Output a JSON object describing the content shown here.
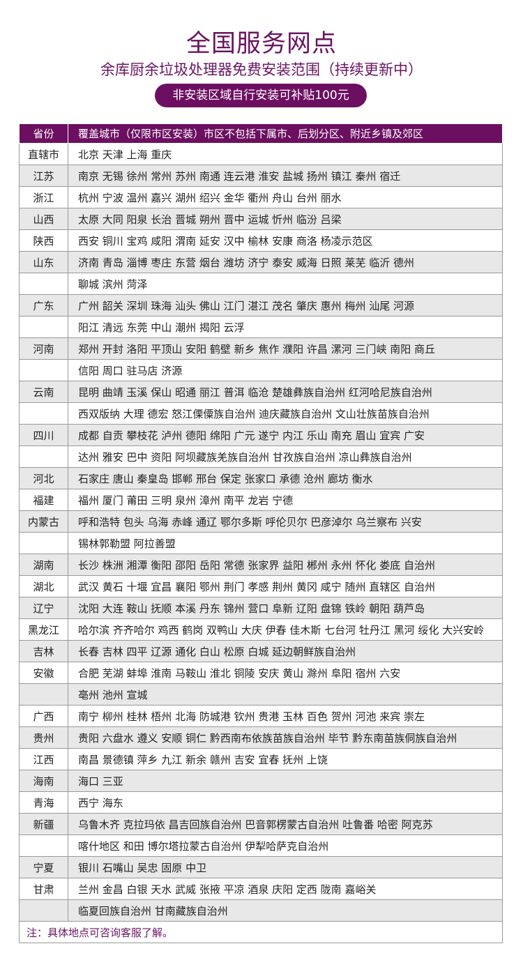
{
  "title": "全国服务网点",
  "subtitle": "余库厨余垃圾处理器免费安装范围（持续更新中）",
  "badge": "非安装区域自行安装可补贴100元",
  "colors": {
    "accent": "#6c0f61"
  },
  "table": {
    "headers": [
      "省份",
      "覆盖城市（仅限市区安装）市区不包括下属市、后划分区、附近乡镇及郊区"
    ],
    "rows": [
      {
        "province": "直辖市",
        "cities": "北京  天津  上海  重庆"
      },
      {
        "province": "江苏",
        "cities": "南京  无锡  徐州  常州  苏州  南通  连云港  淮安  盐城  扬州  镇江  秦州  宿迁"
      },
      {
        "province": "浙江",
        "cities": "杭州  宁波  温州  嘉兴  湖州  绍兴  金华  衢州  舟山  台州  丽水"
      },
      {
        "province": "山西",
        "cities": "太原  大同  阳泉  长治  晋城  朔州  晋中  运城  忻州  临汾  吕梁"
      },
      {
        "province": "陕西",
        "cities": "西安  铜川  宝鸡  咸阳  渭南  延安  汉中  榆林  安康  商洛  杨凌示范区"
      },
      {
        "province": "山东",
        "cities": "济南  青岛  淄博  枣庄  东营  烟台  潍坊  济宁  泰安  威海  日照  莱芜  临沂  德州"
      },
      {
        "province": "",
        "cities": "聊城  滨州  菏泽"
      },
      {
        "province": "广东",
        "cities": "广州  韶关  深圳  珠海  汕头  佛山  江门  湛江  茂名  肇庆  惠州  梅州  汕尾  河源"
      },
      {
        "province": "",
        "cities": "阳江  清远  东莞  中山  潮州  揭阳  云浮"
      },
      {
        "province": "河南",
        "cities": "郑州  开封  洛阳  平顶山  安阳  鹤壁  新乡  焦作  濮阳  许昌  漯河  三门峡  南阳  商丘"
      },
      {
        "province": "",
        "cities": "信阳  周口  驻马店  济源"
      },
      {
        "province": "云南",
        "cities": "昆明  曲靖  玉溪  保山  昭通  丽江  普洱  临沧  楚雄彝族自治州  红河哈尼族自治州"
      },
      {
        "province": "",
        "cities": "西双版纳  大理  德宏  怒江傈僳族自治州  迪庆藏族自治州  文山壮族苗族自治州"
      },
      {
        "province": "四川",
        "cities": "成都  自贡  攀枝花  泸州  德阳  绵阳  广元  遂宁  内江  乐山  南充  眉山  宜宾  广安"
      },
      {
        "province": "",
        "cities": "达州  雅安  巴中  资阳  阿坝藏族羌族自治州  甘孜族自治州  凉山彝族自治州"
      },
      {
        "province": "河北",
        "cities": "石家庄  唐山  秦皇岛  邯郸  邢台  保定  张家口  承德  沧州  廊坊  衡水"
      },
      {
        "province": "福建",
        "cities": "福州  厦门  莆田  三明  泉州  漳州  南平  龙岩  宁德"
      },
      {
        "province": "内蒙古",
        "cities": "呼和浩特  包头  乌海  赤峰  通辽  鄂尔多斯  呼伦贝尔  巴彦淖尔  乌兰察布  兴安"
      },
      {
        "province": "",
        "cities": "锡林郭勒盟  阿拉善盟"
      },
      {
        "province": "湖南",
        "cities": "长沙  株洲  湘潭  衡阳  邵阳  岳阳  常德  张家界  益阳  郴州  永州  怀化  娄底  自治州"
      },
      {
        "province": "湖北",
        "cities": "武汉  黄石  十堰  宜昌  襄阳  鄂州  荆门  孝感  荆州  黄冈  咸宁  随州  直辖区  自治州"
      },
      {
        "province": "辽宁",
        "cities": "沈阳  大连  鞍山  抚顺  本溪  丹东  锦州  营口  阜新  辽阳  盘锦  铁岭  朝阳  葫芦岛"
      },
      {
        "province": "黑龙江",
        "cities": "哈尔滨  齐齐哈尔  鸡西  鹤岗  双鸭山  大庆  伊春  佳木斯  七台河  牡丹江  黑河  绥化  大兴安岭"
      },
      {
        "province": "吉林",
        "cities": "长春  吉林  四平  辽源  通化  白山  松原  白城  延边朝鲜族自治州"
      },
      {
        "province": "安徽",
        "cities": "合肥  芜湖  蚌埠  淮南  马鞍山  淮北  铜陵  安庆   黄山  滁州   阜阳  宿州  六安"
      },
      {
        "province": "",
        "cities": "亳州  池州  宣城"
      },
      {
        "province": "广西",
        "cities": "南宁  柳州  桂林  梧州  北海  防城港  钦州  贵港  玉林  百色  贺州  河池  来宾  崇左"
      },
      {
        "province": "贵州",
        "cities": "贵阳  六盘水  遵义  安顺  铜仁  黔西南布依族苗族自治州  毕节  黔东南苗族侗族自治州"
      },
      {
        "province": "江西",
        "cities": "南昌  景德镇  萍乡  九江  新余  赣州  吉安  宜春  抚州  上饶"
      },
      {
        "province": "海南",
        "cities": "海口  三亚"
      },
      {
        "province": "青海",
        "cities": "西宁  海东"
      },
      {
        "province": "新疆",
        "cities": "乌鲁木齐  克拉玛依  昌吉回族自治州  巴音郭楞蒙古自治州  吐鲁番  哈密  阿克苏"
      },
      {
        "province": "",
        "cities": "喀什地区  和田  博尔塔拉蒙古自治州  伊犁哈萨克自治州"
      },
      {
        "province": "宁夏",
        "cities": "银川  石嘴山  吴忠  固原  中卫"
      },
      {
        "province": "甘肃",
        "cities": "兰州  金昌  白银  天水  武威  张掖  平凉  酒泉  庆阳  定西  陇南  嘉峪关"
      },
      {
        "province": "",
        "cities": "临夏回族自治州  甘南藏族自治州"
      }
    ],
    "note": "注：具体地点可咨询客服了解。"
  }
}
